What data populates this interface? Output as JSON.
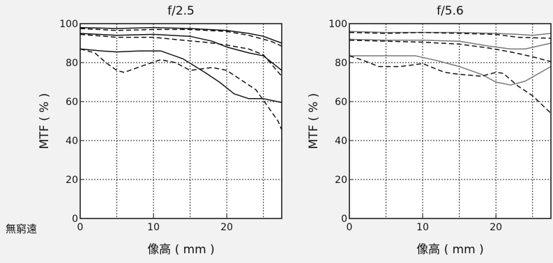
{
  "side_label": "無窮遠",
  "chart_data": [
    {
      "type": "line",
      "title": "f/2.5",
      "xlabel": "像高 ( mm )",
      "ylabel": "MTF ( % )",
      "xlim": [
        0,
        27.5
      ],
      "ylim": [
        0,
        100
      ],
      "xticks": [
        0,
        10,
        20
      ],
      "yticks": [
        0,
        20,
        40,
        60,
        80,
        100
      ],
      "grid": true,
      "series": [
        {
          "color": "#111111",
          "dash": false,
          "points": [
            [
              0,
              98
            ],
            [
              5,
              97.5
            ],
            [
              10,
              98
            ],
            [
              15,
              97.5
            ],
            [
              20,
              96.5
            ],
            [
              23,
              95
            ],
            [
              25,
              93.5
            ],
            [
              27.5,
              90
            ]
          ]
        },
        {
          "color": "#111111",
          "dash": true,
          "points": [
            [
              0,
              97.5
            ],
            [
              5,
              96.5
            ],
            [
              10,
              97
            ],
            [
              15,
              97
            ],
            [
              20,
              96
            ],
            [
              23,
              94
            ],
            [
              26,
              91
            ],
            [
              27.5,
              88.5
            ]
          ]
        },
        {
          "color": "#111111",
          "dash": false,
          "points": [
            [
              0,
              95
            ],
            [
              5,
              94
            ],
            [
              10,
              94.5
            ],
            [
              15,
              93.5
            ],
            [
              18,
              91
            ],
            [
              20,
              88
            ],
            [
              23,
              85
            ],
            [
              25,
              83.5
            ],
            [
              27.5,
              76
            ]
          ]
        },
        {
          "color": "#111111",
          "dash": true,
          "points": [
            [
              0,
              94.5
            ],
            [
              5,
              93
            ],
            [
              10,
              93
            ],
            [
              14,
              91.5
            ],
            [
              17,
              90.5
            ],
            [
              20,
              89
            ],
            [
              23,
              87
            ],
            [
              25,
              84
            ],
            [
              27.5,
              73
            ]
          ]
        },
        {
          "color": "#111111",
          "dash": false,
          "points": [
            [
              0,
              87
            ],
            [
              3,
              86
            ],
            [
              5,
              85.5
            ],
            [
              8,
              86
            ],
            [
              11,
              86
            ],
            [
              14,
              82
            ],
            [
              17,
              75
            ],
            [
              19,
              70
            ],
            [
              21,
              64
            ],
            [
              23,
              61.5
            ],
            [
              25,
              61.5
            ],
            [
              27.5,
              59.5
            ]
          ]
        },
        {
          "color": "#111111",
          "dash": true,
          "points": [
            [
              0,
              87
            ],
            [
              2,
              85
            ],
            [
              3.5,
              80
            ],
            [
              5,
              76
            ],
            [
              6,
              75
            ],
            [
              9,
              79
            ],
            [
              11,
              81.5
            ],
            [
              13,
              80
            ],
            [
              15,
              76
            ],
            [
              18,
              77.5
            ],
            [
              20,
              76
            ],
            [
              22,
              71
            ],
            [
              24,
              66
            ],
            [
              25.5,
              58
            ],
            [
              27,
              50
            ],
            [
              27.5,
              45.5
            ]
          ]
        }
      ]
    },
    {
      "type": "line",
      "title": "f/5.6",
      "xlabel": "像高 ( mm )",
      "ylabel": "MTF ( % )",
      "xlim": [
        0,
        27.5
      ],
      "ylim": [
        0,
        100
      ],
      "xticks": [
        0,
        10,
        20
      ],
      "yticks": [
        0,
        20,
        40,
        60,
        80,
        100
      ],
      "grid": true,
      "series": [
        {
          "color": "#777777",
          "dash": false,
          "points": [
            [
              0,
              96
            ],
            [
              5,
              95.5
            ],
            [
              10,
              95.5
            ],
            [
              15,
              95.5
            ],
            [
              20,
              95
            ],
            [
              23,
              94.5
            ],
            [
              25,
              94
            ],
            [
              27.5,
              95
            ]
          ]
        },
        {
          "color": "#111111",
          "dash": true,
          "points": [
            [
              0,
              95.5
            ],
            [
              5,
              95
            ],
            [
              10,
              95.5
            ],
            [
              15,
              95
            ],
            [
              20,
              94.5
            ],
            [
              23,
              93
            ],
            [
              27.5,
              92.5
            ]
          ]
        },
        {
          "color": "#777777",
          "dash": false,
          "points": [
            [
              0,
              92
            ],
            [
              5,
              91.5
            ],
            [
              10,
              91.5
            ],
            [
              15,
              91
            ],
            [
              19,
              88.5
            ],
            [
              22,
              87
            ],
            [
              24,
              87
            ],
            [
              27.5,
              90
            ]
          ]
        },
        {
          "color": "#111111",
          "dash": true,
          "points": [
            [
              0,
              91.5
            ],
            [
              5,
              91
            ],
            [
              10,
              90.5
            ],
            [
              15,
              89.5
            ],
            [
              19,
              87.5
            ],
            [
              22,
              85.5
            ],
            [
              25,
              83
            ],
            [
              27.5,
              80.5
            ]
          ]
        },
        {
          "color": "#777777",
          "dash": false,
          "points": [
            [
              0,
              83.5
            ],
            [
              4,
              83.5
            ],
            [
              9,
              83.5
            ],
            [
              12,
              81
            ],
            [
              15,
              78
            ],
            [
              18,
              74
            ],
            [
              20,
              70
            ],
            [
              22,
              68.5
            ],
            [
              24,
              70.5
            ],
            [
              27.5,
              78
            ]
          ]
        },
        {
          "color": "#111111",
          "dash": true,
          "points": [
            [
              0,
              83.5
            ],
            [
              2,
              81
            ],
            [
              4,
              78
            ],
            [
              7,
              78
            ],
            [
              10,
              79.5
            ],
            [
              13,
              75
            ],
            [
              15,
              74
            ],
            [
              18,
              73
            ],
            [
              20,
              75
            ],
            [
              21,
              74.5
            ],
            [
              23,
              68
            ],
            [
              25,
              63
            ],
            [
              27.5,
              54
            ]
          ]
        }
      ]
    }
  ]
}
